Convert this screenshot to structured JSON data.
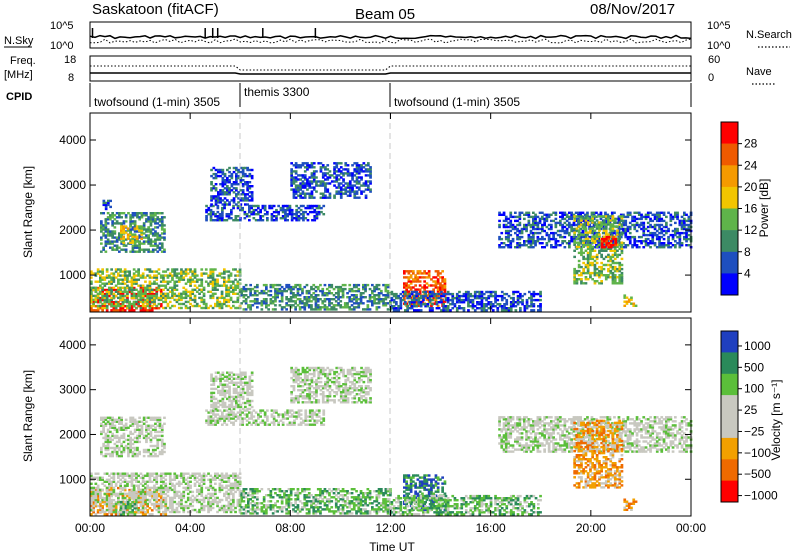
{
  "header": {
    "station": "Saskatoon (fitACF)",
    "beam": "Beam 05",
    "date": "08/Nov/2017"
  },
  "nsky_panel": {
    "left_label": "N.Sky",
    "right_label": "N.Search",
    "left_ticks": [
      "10^5",
      "10^0"
    ],
    "right_ticks": [
      "10^5",
      "10^0"
    ]
  },
  "freq_panel": {
    "left_label_line1": "Freq.",
    "left_label_line2": "[MHz]",
    "right_label": "Nave",
    "left_ticks": [
      "18",
      "8"
    ],
    "right_ticks": [
      "60",
      "0"
    ]
  },
  "cpid": {
    "label": "CPID",
    "segments": [
      {
        "name": "twofsound (1-min) 3505",
        "start_hour": 0,
        "end_hour": 6
      },
      {
        "name": "themis 3300",
        "start_hour": 6,
        "end_hour": 12
      },
      {
        "name": "twofsound (1-min) 3505",
        "start_hour": 12,
        "end_hour": 24
      }
    ]
  },
  "colors": {
    "power_scale": [
      "#0000ff",
      "#1e4fbf",
      "#3c8a64",
      "#5fb44a",
      "#f2c500",
      "#f59a00",
      "#ef5a00",
      "#ff0000"
    ],
    "velocity_scale": [
      "#1f3fbf",
      "#2a8a5a",
      "#5bbf3a",
      "#c8c8c0",
      "#c8c8c0",
      "#f2a000",
      "#ef6a00",
      "#ff0000"
    ]
  },
  "chart_data": [
    {
      "type": "heatmap",
      "name": "power",
      "ylabel": "Slant Range [km]",
      "xlabel": "",
      "xlim": [
        0,
        24
      ],
      "ylim": [
        180,
        4600
      ],
      "x_ticks": [
        "00:00",
        "04:00",
        "08:00",
        "12:00",
        "16:00",
        "20:00",
        "00:00"
      ],
      "y_ticks": [
        1000,
        2000,
        3000,
        4000
      ],
      "colorbar_label": "Power [dB]",
      "colorbar_ticks": [
        "4",
        "8",
        "12",
        "16",
        "20",
        "24",
        "28"
      ],
      "echo_regions": [
        {
          "t0": 0.0,
          "t1": 2.8,
          "r0": 200,
          "r1": 700,
          "level": 7
        },
        {
          "t0": 0.0,
          "t1": 6.0,
          "r0": 250,
          "r1": 1150,
          "level": 3
        },
        {
          "t0": 0.4,
          "t1": 3.0,
          "r0": 1500,
          "r1": 2400,
          "level": 2
        },
        {
          "t0": 0.5,
          "t1": 0.8,
          "r0": 2450,
          "r1": 2650,
          "level": 1
        },
        {
          "t0": 1.2,
          "t1": 2.1,
          "r0": 1700,
          "r1": 2100,
          "level": 4
        },
        {
          "t0": 4.6,
          "t1": 9.3,
          "r0": 2200,
          "r1": 2550,
          "level": 1
        },
        {
          "t0": 4.8,
          "t1": 6.5,
          "r0": 2550,
          "r1": 3400,
          "level": 1
        },
        {
          "t0": 8.0,
          "t1": 11.2,
          "r0": 2700,
          "r1": 3500,
          "level": 1
        },
        {
          "t0": 6.0,
          "t1": 12.0,
          "r0": 220,
          "r1": 800,
          "level": 2
        },
        {
          "t0": 12.5,
          "t1": 14.2,
          "r0": 300,
          "r1": 1100,
          "level": 6
        },
        {
          "t0": 12.0,
          "t1": 18.0,
          "r0": 200,
          "r1": 650,
          "level": 1
        },
        {
          "t0": 16.3,
          "t1": 24.0,
          "r0": 1600,
          "r1": 2400,
          "level": 1
        },
        {
          "t0": 19.3,
          "t1": 21.2,
          "r0": 800,
          "r1": 2300,
          "level": 3
        },
        {
          "t0": 20.4,
          "t1": 21.0,
          "r0": 1600,
          "r1": 1850,
          "level": 7
        },
        {
          "t0": 21.3,
          "t1": 21.8,
          "r0": 300,
          "r1": 550,
          "level": 4
        }
      ]
    },
    {
      "type": "heatmap",
      "name": "velocity",
      "ylabel": "Slant Range [km]",
      "xlabel": "Time UT",
      "xlim": [
        0,
        24
      ],
      "ylim": [
        180,
        4600
      ],
      "x_ticks": [
        "00:00",
        "04:00",
        "08:00",
        "12:00",
        "16:00",
        "20:00",
        "00:00"
      ],
      "y_ticks": [
        1000,
        2000,
        3000,
        4000
      ],
      "colorbar_label": "Velocity [m s⁻¹]",
      "colorbar_ticks": [
        "1000",
        "500",
        "100",
        "25",
        "−25",
        "−100",
        "−500",
        "−1000"
      ],
      "echo_regions": [
        {
          "t0": 0.0,
          "t1": 3.0,
          "r0": 200,
          "r1": 800,
          "level": 5
        },
        {
          "t0": 0.0,
          "t1": 6.0,
          "r0": 250,
          "r1": 1150,
          "level": 3
        },
        {
          "t0": 0.4,
          "t1": 3.0,
          "r0": 1500,
          "r1": 2400,
          "level": 3
        },
        {
          "t0": 1.2,
          "t1": 1.8,
          "r0": 200,
          "r1": 500,
          "level": 2
        },
        {
          "t0": 4.6,
          "t1": 9.3,
          "r0": 2200,
          "r1": 2550,
          "level": 3
        },
        {
          "t0": 4.8,
          "t1": 6.5,
          "r0": 2550,
          "r1": 3400,
          "level": 3
        },
        {
          "t0": 8.0,
          "t1": 11.2,
          "r0": 2700,
          "r1": 3500,
          "level": 3
        },
        {
          "t0": 6.0,
          "t1": 12.0,
          "r0": 220,
          "r1": 800,
          "level": 2
        },
        {
          "t0": 12.5,
          "t1": 14.2,
          "r0": 300,
          "r1": 1100,
          "level": 1
        },
        {
          "t0": 12.0,
          "t1": 18.0,
          "r0": 200,
          "r1": 650,
          "level": 2
        },
        {
          "t0": 16.3,
          "t1": 24.0,
          "r0": 1600,
          "r1": 2400,
          "level": 3
        },
        {
          "t0": 19.3,
          "t1": 21.2,
          "r0": 800,
          "r1": 2300,
          "level": 5
        },
        {
          "t0": 21.3,
          "t1": 21.8,
          "r0": 300,
          "r1": 550,
          "level": 5
        }
      ]
    }
  ]
}
